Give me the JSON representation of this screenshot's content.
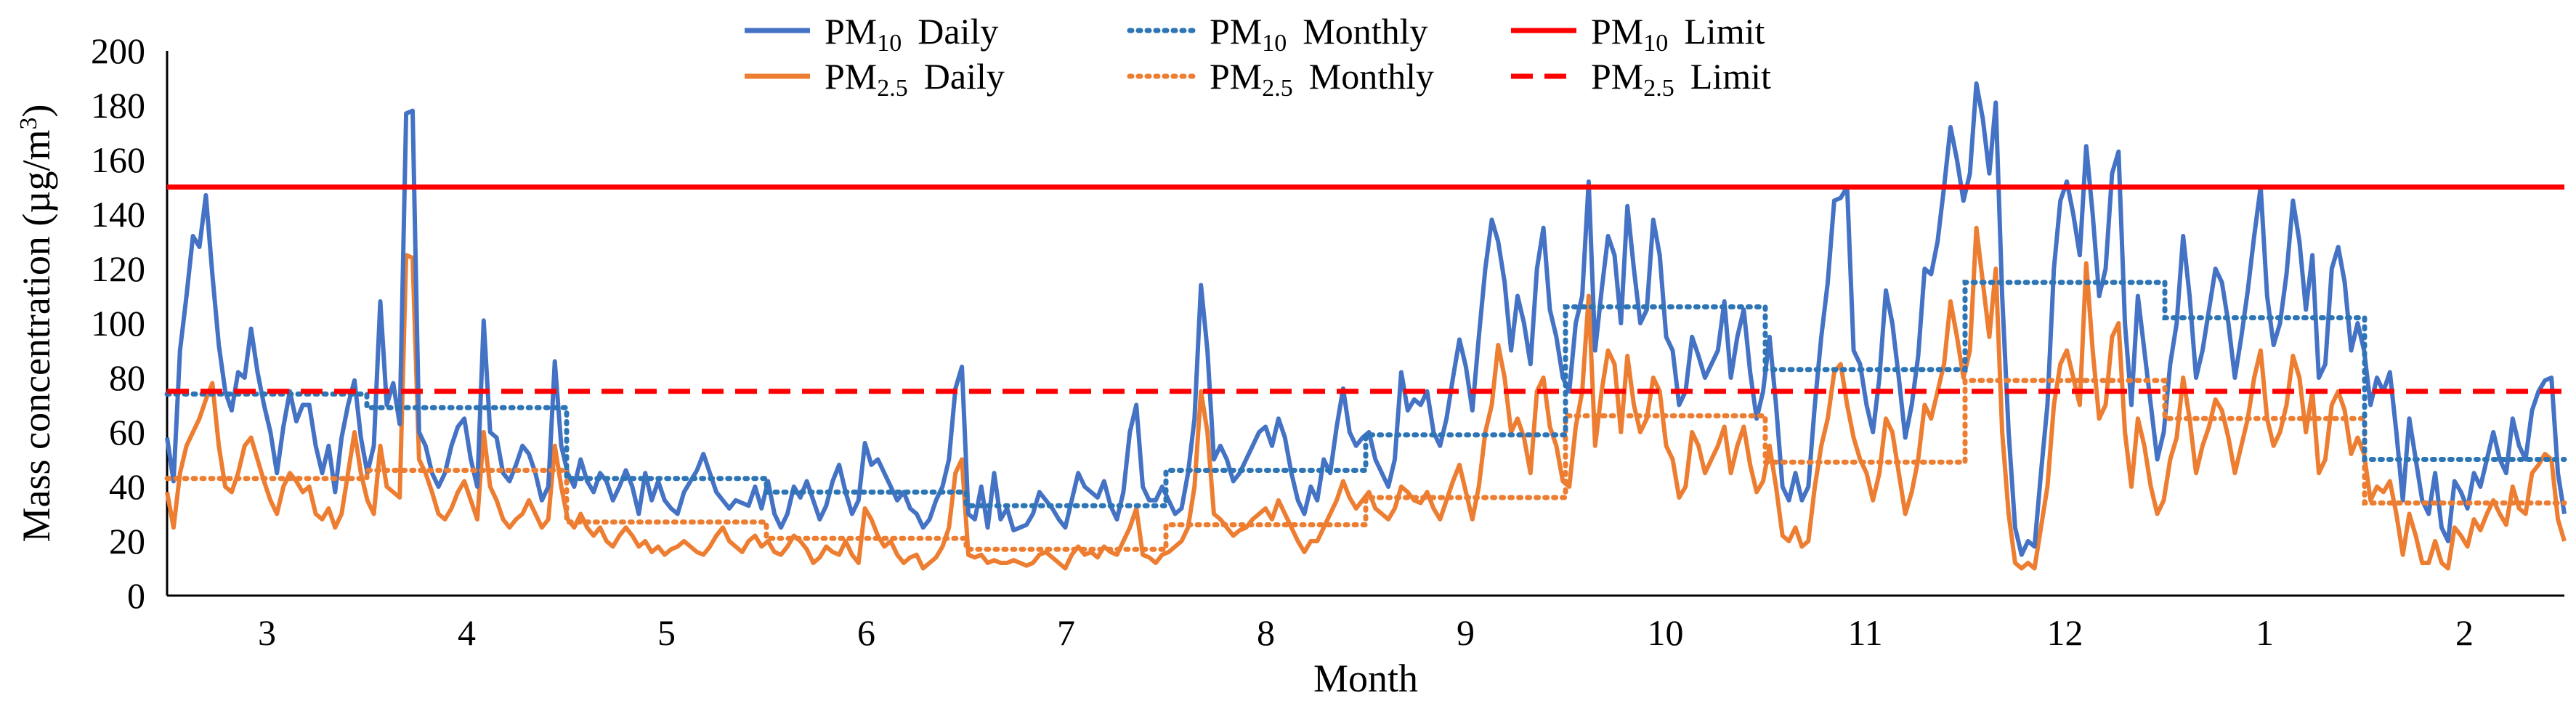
{
  "chart_data": {
    "type": "line",
    "title": "",
    "xlabel": "Month",
    "ylabel": "Mass concentration (µg/m³)",
    "ylabel_parts": {
      "main": "Mass concentration (µg/m",
      "sup": "3",
      "end": ")"
    },
    "ylim": [
      0,
      200
    ],
    "yticks": [
      "0",
      "20",
      "40",
      "60",
      "80",
      "100",
      "120",
      "140",
      "160",
      "180",
      "200"
    ],
    "months": [
      "3",
      "4",
      "5",
      "6",
      "7",
      "8",
      "9",
      "10",
      "11",
      "12",
      "1",
      "2"
    ],
    "limits": {
      "pm10": 150,
      "pm25": 75
    },
    "legend": {
      "pm10_daily": {
        "base": "PM",
        "sub": "10",
        "suffix": "Daily"
      },
      "pm10_monthly": {
        "base": "PM",
        "sub": "10",
        "suffix": "Monthly"
      },
      "pm10_limit": {
        "base": "PM",
        "sub": "10",
        "suffix": "Limit"
      },
      "pm25_daily": {
        "base": "PM",
        "sub": "2.5",
        "suffix": "Daily"
      },
      "pm25_monthly": {
        "base": "PM",
        "sub": "2.5",
        "suffix": "Monthly"
      },
      "pm25_limit": {
        "base": "PM",
        "sub": "2.5",
        "suffix": "Limit"
      }
    },
    "colors": {
      "pm10": "#4472C4",
      "pm25": "#ED7D31",
      "pm10_monthly": "#2E75B6",
      "pm25_monthly": "#ED7D31",
      "limit": "#FF0000"
    },
    "series": [
      {
        "name": "PM10 Monthly",
        "values": [
          74,
          69,
          43,
          38,
          33,
          46,
          59,
          106,
          83,
          115,
          102,
          50
        ]
      },
      {
        "name": "PM2.5 Monthly",
        "values": [
          43,
          46,
          27,
          21,
          17,
          26,
          36,
          66,
          49,
          79,
          65,
          34
        ]
      },
      {
        "name": "PM10 Daily",
        "step": 1,
        "values": [
          58,
          42,
          90,
          110,
          132,
          128,
          147,
          118,
          92,
          75,
          68,
          82,
          80,
          98,
          82,
          70,
          60,
          45,
          62,
          75,
          64,
          70,
          70,
          55,
          45,
          55,
          38,
          58,
          70,
          79,
          58,
          45,
          55,
          108,
          70,
          78,
          63,
          177,
          178,
          60,
          55,
          45,
          40,
          45,
          55,
          62,
          65,
          50,
          40,
          101,
          60,
          58,
          45,
          42,
          48,
          55,
          52,
          45,
          35,
          40,
          86,
          55,
          45,
          40,
          50,
          42,
          38,
          45,
          42,
          35,
          40,
          46,
          40,
          30,
          45,
          35,
          42,
          35,
          32,
          30,
          38,
          42,
          46,
          52,
          45,
          38,
          35,
          32,
          35,
          34,
          33,
          40,
          32,
          42,
          30,
          25,
          30,
          40,
          36,
          42,
          35,
          28,
          33,
          42,
          48,
          38,
          30,
          35,
          56,
          48,
          50,
          45,
          40,
          35,
          38,
          32,
          30,
          25,
          28,
          35,
          40,
          50,
          76,
          84,
          30,
          28,
          40,
          25,
          45,
          28,
          32,
          24,
          25,
          26,
          30,
          38,
          35,
          32,
          28,
          25,
          35,
          45,
          40,
          38,
          36,
          42,
          33,
          28,
          38,
          60,
          70,
          40,
          35,
          35,
          40,
          35,
          30,
          32,
          45,
          65,
          114,
          90,
          50,
          55,
          50,
          42,
          45,
          50,
          55,
          60,
          62,
          55,
          65,
          58,
          45,
          35,
          30,
          40,
          35,
          50,
          45,
          62,
          76,
          60,
          55,
          58,
          60,
          50,
          45,
          40,
          50,
          82,
          68,
          72,
          70,
          75,
          60,
          55,
          65,
          80,
          94,
          84,
          68,
          95,
          120,
          138,
          130,
          115,
          90,
          110,
          100,
          85,
          120,
          135,
          105,
          95,
          80,
          75,
          100,
          110,
          152,
          90,
          112,
          132,
          125,
          100,
          143,
          120,
          100,
          105,
          138,
          125,
          95,
          90,
          70,
          75,
          95,
          88,
          80,
          85,
          90,
          108,
          80,
          95,
          105,
          82,
          65,
          75,
          95,
          70,
          40,
          35,
          45,
          35,
          40,
          70,
          95,
          115,
          145,
          146,
          150,
          90,
          85,
          70,
          60,
          80,
          112,
          100,
          80,
          58,
          70,
          88,
          120,
          118,
          130,
          150,
          172,
          160,
          145,
          155,
          188,
          175,
          155,
          181,
          110,
          60,
          25,
          15,
          20,
          18,
          45,
          70,
          120,
          145,
          152,
          140,
          125,
          165,
          140,
          110,
          120,
          155,
          163,
          100,
          70,
          110,
          90,
          70,
          50,
          60,
          85,
          100,
          132,
          110,
          80,
          90,
          105,
          120,
          115,
          100,
          80,
          95,
          112,
          132,
          150,
          110,
          92,
          100,
          118,
          145,
          130,
          105,
          125,
          80,
          85,
          120,
          128,
          115,
          90,
          100,
          90,
          70,
          80,
          75,
          82,
          60,
          35,
          65,
          50,
          35,
          30,
          45,
          25,
          20,
          42,
          38,
          32,
          45,
          40,
          50,
          60,
          50,
          45,
          65,
          55,
          50,
          68,
          75,
          79,
          80,
          45,
          30
        ]
      },
      {
        "name": "PM2.5 Daily",
        "step": 1,
        "values": [
          38,
          25,
          45,
          55,
          60,
          65,
          72,
          78,
          55,
          40,
          38,
          45,
          55,
          58,
          50,
          42,
          35,
          30,
          40,
          45,
          42,
          38,
          40,
          30,
          28,
          32,
          25,
          30,
          45,
          60,
          45,
          35,
          30,
          55,
          40,
          38,
          36,
          125,
          124,
          50,
          45,
          38,
          30,
          28,
          32,
          38,
          42,
          35,
          28,
          60,
          40,
          35,
          28,
          25,
          28,
          30,
          35,
          30,
          25,
          28,
          55,
          40,
          28,
          25,
          30,
          25,
          22,
          25,
          20,
          18,
          22,
          25,
          22,
          18,
          20,
          16,
          18,
          15,
          17,
          18,
          20,
          18,
          16,
          15,
          18,
          22,
          25,
          20,
          18,
          16,
          20,
          22,
          18,
          20,
          16,
          15,
          18,
          22,
          20,
          17,
          12,
          14,
          18,
          16,
          15,
          20,
          15,
          12,
          32,
          28,
          22,
          18,
          20,
          15,
          12,
          14,
          15,
          10,
          12,
          14,
          18,
          25,
          45,
          50,
          15,
          14,
          15,
          12,
          13,
          12,
          12,
          13,
          12,
          11,
          12,
          15,
          16,
          14,
          12,
          10,
          15,
          18,
          15,
          16,
          14,
          18,
          16,
          15,
          20,
          25,
          32,
          15,
          14,
          12,
          15,
          16,
          18,
          20,
          25,
          40,
          75,
          60,
          30,
          28,
          25,
          22,
          24,
          25,
          28,
          30,
          32,
          28,
          35,
          30,
          25,
          20,
          16,
          20,
          20,
          25,
          30,
          35,
          42,
          36,
          32,
          35,
          38,
          32,
          30,
          28,
          32,
          40,
          38,
          35,
          34,
          38,
          32,
          28,
          35,
          42,
          48,
          38,
          28,
          40,
          60,
          70,
          92,
          80,
          60,
          65,
          58,
          45,
          75,
          80,
          62,
          55,
          42,
          40,
          62,
          75,
          110,
          55,
          75,
          90,
          85,
          60,
          88,
          70,
          60,
          65,
          80,
          75,
          55,
          50,
          36,
          40,
          60,
          55,
          45,
          50,
          55,
          62,
          45,
          55,
          62,
          48,
          38,
          42,
          55,
          40,
          22,
          20,
          25,
          18,
          20,
          40,
          55,
          65,
          82,
          85,
          70,
          58,
          50,
          45,
          35,
          45,
          65,
          60,
          45,
          30,
          38,
          50,
          70,
          65,
          75,
          85,
          108,
          95,
          80,
          90,
          135,
          115,
          95,
          120,
          60,
          30,
          12,
          10,
          12,
          10,
          25,
          40,
          70,
          85,
          90,
          80,
          70,
          122,
          90,
          65,
          70,
          95,
          100,
          60,
          40,
          65,
          55,
          40,
          30,
          35,
          50,
          58,
          80,
          65,
          45,
          55,
          62,
          72,
          68,
          58,
          45,
          55,
          65,
          80,
          90,
          65,
          55,
          60,
          70,
          88,
          80,
          60,
          75,
          45,
          50,
          70,
          75,
          68,
          52,
          58,
          52,
          35,
          40,
          38,
          42,
          30,
          15,
          30,
          22,
          12,
          12,
          20,
          12,
          10,
          25,
          22,
          18,
          28,
          24,
          30,
          35,
          30,
          26,
          40,
          32,
          30,
          45,
          48,
          52,
          50,
          28,
          20
        ]
      }
    ]
  }
}
